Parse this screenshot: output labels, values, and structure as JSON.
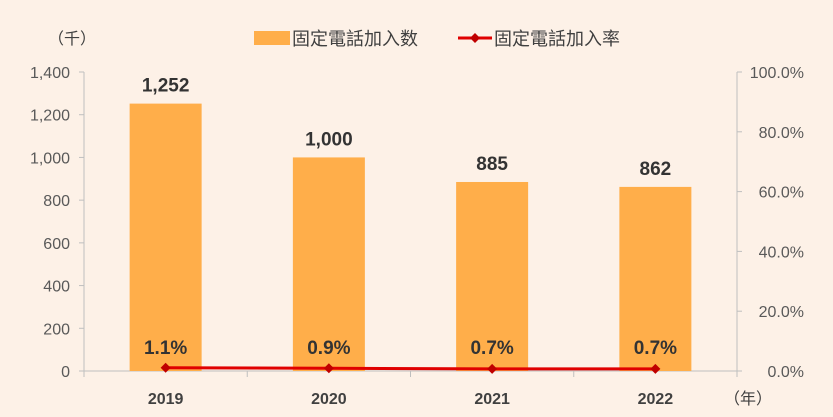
{
  "chart_data": {
    "type": "bar",
    "categories": [
      "2019",
      "2020",
      "2021",
      "2022"
    ],
    "series": [
      {
        "name": "固定電話加入数",
        "type": "bar",
        "axis": "left",
        "values": [
          1252,
          1000,
          885,
          862
        ],
        "labels": [
          "1,252",
          "1,000",
          "885",
          "862"
        ],
        "color": "#ffae4a"
      },
      {
        "name": "固定電話加入率",
        "type": "line",
        "axis": "right",
        "values": [
          1.1,
          0.9,
          0.7,
          0.7
        ],
        "labels": [
          "1.1%",
          "0.9%",
          "0.7%",
          "0.7%"
        ],
        "color": "#e00000"
      }
    ],
    "y_left": {
      "unit": "（千）",
      "ylim": [
        0,
        1400
      ],
      "ticks": [
        "0",
        "200",
        "400",
        "600",
        "800",
        "1,000",
        "1,200",
        "1,400"
      ]
    },
    "y_right": {
      "ylim": [
        0,
        100
      ],
      "ticks": [
        "0.0%",
        "20.0%",
        "40.0%",
        "60.0%",
        "80.0%",
        "100.0%"
      ]
    },
    "x_unit": "（年）",
    "grid": false,
    "legend_position": "top"
  }
}
